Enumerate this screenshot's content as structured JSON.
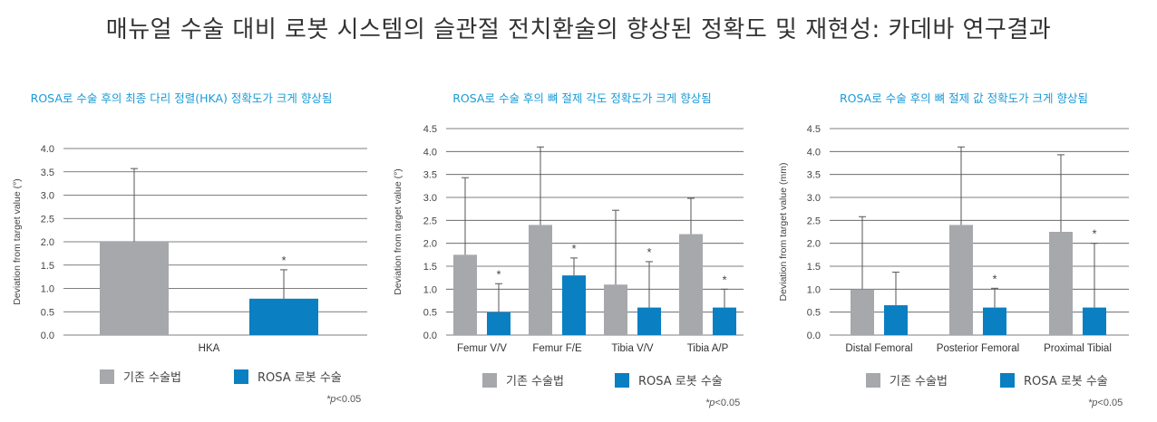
{
  "title": "매뉴얼 수술 대비 로봇 시스템의 슬관절 전치환술의 향상된 정확도 및 재현성: 카데바 연구결과",
  "colors": {
    "manual": "#a6a8ab",
    "robot": "#0a7fc2",
    "title_accent": "#1a9bd7",
    "grid": "#555555",
    "error": "#555555"
  },
  "legend": {
    "manual": "기존 수술법",
    "robot": "ROSA 로봇 수술"
  },
  "significance_note": {
    "p": "*p",
    "rest": "<0.05"
  },
  "significance_marker": "*",
  "chart_data": [
    {
      "type": "bar",
      "title": "ROSA로 수술 후의 최종 다리 정렬(HKA) 정확도가 크게 향상됨",
      "ylabel": "Deviation from target value (°)",
      "ylim": [
        0,
        4.0
      ],
      "yticks": [
        "0.0",
        "0.5",
        "1.0",
        "1.5",
        "2.0",
        "2.5",
        "3.0",
        "3.5",
        "4.0"
      ],
      "categories": [
        "HKA"
      ],
      "series": [
        {
          "name": "기존 수술법",
          "values": [
            2.0
          ],
          "errors": [
            1.57
          ]
        },
        {
          "name": "ROSA 로봇 수술",
          "values": [
            0.78
          ],
          "errors": [
            0.62
          ]
        }
      ],
      "significant": [
        true
      ]
    },
    {
      "type": "bar",
      "title": "ROSA로 수술 후의 뼈 절제 각도 정확도가 크게 향상됨",
      "ylabel": "Deviation from target value (°)",
      "ylim": [
        0,
        4.5
      ],
      "yticks": [
        "0.0",
        "0.5",
        "1.0",
        "1.5",
        "2.0",
        "2.5",
        "3.0",
        "3.5",
        "4.0",
        "4.5"
      ],
      "categories": [
        "Femur V/V",
        "Femur F/E",
        "Tibia V/V",
        "Tibia A/P"
      ],
      "series": [
        {
          "name": "기존 수술법",
          "values": [
            1.75,
            2.4,
            1.1,
            2.2
          ],
          "errors": [
            1.68,
            1.7,
            1.62,
            0.78
          ]
        },
        {
          "name": "ROSA 로봇 수술",
          "values": [
            0.5,
            1.3,
            0.6,
            0.6
          ],
          "errors": [
            0.62,
            0.38,
            1.0,
            0.4
          ]
        }
      ],
      "significant": [
        true,
        true,
        true,
        true
      ]
    },
    {
      "type": "bar",
      "title": "ROSA로 수술 후의 뼈 절제 값 정확도가 크게 향상됨",
      "ylabel": "Deviation from target value (mm)",
      "ylim": [
        0,
        4.5
      ],
      "yticks": [
        "0.0",
        "0.5",
        "1.0",
        "1.5",
        "2.0",
        "2.5",
        "3.0",
        "3.5",
        "4.0",
        "4.5"
      ],
      "categories": [
        "Distal Femoral",
        "Posterior Femoral",
        "Proximal Tibial"
      ],
      "series": [
        {
          "name": "기존 수술법",
          "values": [
            1.0,
            2.4,
            2.25
          ],
          "errors": [
            1.58,
            1.7,
            1.68
          ]
        },
        {
          "name": "ROSA 로봇 수술",
          "values": [
            0.65,
            0.6,
            0.6
          ],
          "errors": [
            0.72,
            0.42,
            1.4
          ]
        }
      ],
      "significant": [
        false,
        true,
        true
      ]
    }
  ]
}
